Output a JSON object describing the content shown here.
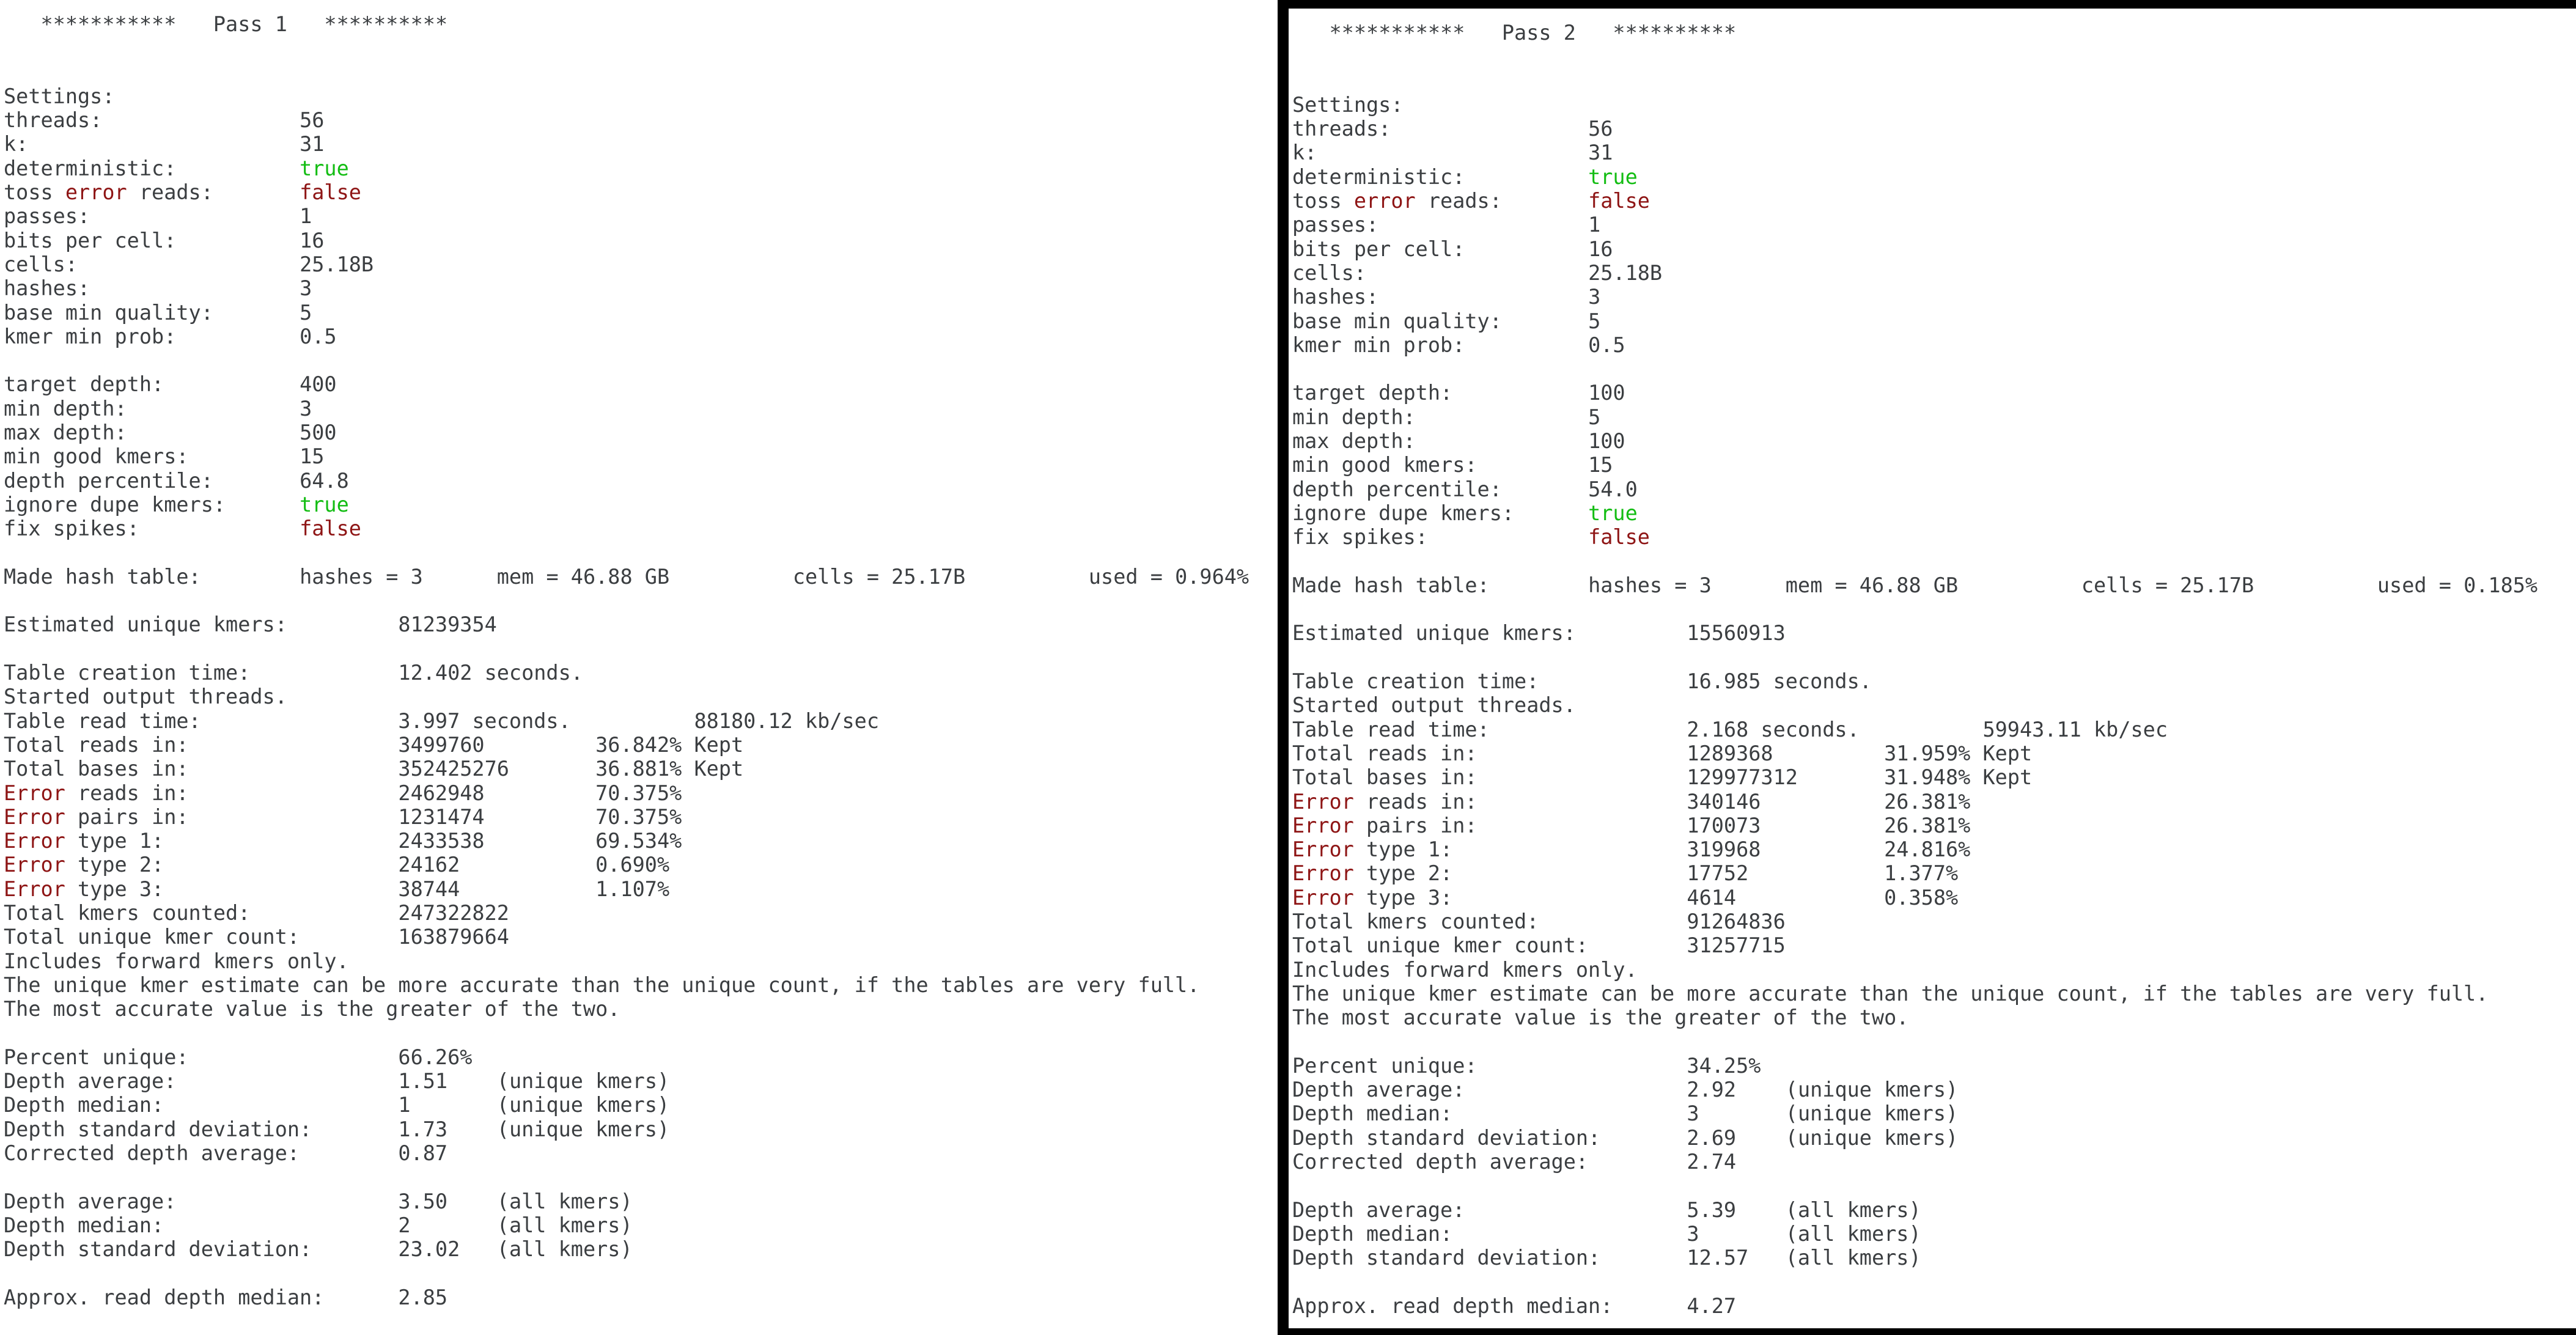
{
  "app": {
    "description": "BBNorm two-pass kmer normalization terminal output, two terminal windows side by side"
  },
  "colors": {
    "text": "#3b3e41",
    "error_red": "#8e1515",
    "true_green": "#13bd13",
    "window_border": "#000000",
    "background": "#ffffff"
  },
  "panels": [
    {
      "name": "pass-1",
      "title": "Pass 1",
      "rows": [
        [
          {
            "col": 3,
            "t": "***********"
          },
          {
            "col": 17,
            "t": "Pass 1"
          },
          {
            "col": 26,
            "t": "**********"
          }
        ],
        [],
        [],
        [
          {
            "col": 0,
            "t": "Settings:"
          }
        ],
        [
          {
            "col": 0,
            "t": "threads:"
          },
          {
            "col": 24,
            "t": "56"
          }
        ],
        [
          {
            "col": 0,
            "t": "k:"
          },
          {
            "col": 24,
            "t": "31"
          }
        ],
        [
          {
            "col": 0,
            "t": "deterministic:"
          },
          {
            "col": 24,
            "t": "true",
            "c": "green"
          }
        ],
        [
          {
            "col": 0,
            "t": "toss "
          },
          {
            "t": "error",
            "c": "red"
          },
          {
            "t": " reads:"
          },
          {
            "col": 24,
            "t": "false",
            "c": "red"
          }
        ],
        [
          {
            "col": 0,
            "t": "passes:"
          },
          {
            "col": 24,
            "t": "1"
          }
        ],
        [
          {
            "col": 0,
            "t": "bits per cell:"
          },
          {
            "col": 24,
            "t": "16"
          }
        ],
        [
          {
            "col": 0,
            "t": "cells:"
          },
          {
            "col": 24,
            "t": "25.18B"
          }
        ],
        [
          {
            "col": 0,
            "t": "hashes:"
          },
          {
            "col": 24,
            "t": "3"
          }
        ],
        [
          {
            "col": 0,
            "t": "base min quality:"
          },
          {
            "col": 24,
            "t": "5"
          }
        ],
        [
          {
            "col": 0,
            "t": "kmer min prob:"
          },
          {
            "col": 24,
            "t": "0.5"
          }
        ],
        [],
        [
          {
            "col": 0,
            "t": "target depth:"
          },
          {
            "col": 24,
            "t": "400"
          }
        ],
        [
          {
            "col": 0,
            "t": "min depth:"
          },
          {
            "col": 24,
            "t": "3"
          }
        ],
        [
          {
            "col": 0,
            "t": "max depth:"
          },
          {
            "col": 24,
            "t": "500"
          }
        ],
        [
          {
            "col": 0,
            "t": "min good kmers:"
          },
          {
            "col": 24,
            "t": "15"
          }
        ],
        [
          {
            "col": 0,
            "t": "depth percentile:"
          },
          {
            "col": 24,
            "t": "64.8"
          }
        ],
        [
          {
            "col": 0,
            "t": "ignore dupe kmers:"
          },
          {
            "col": 24,
            "t": "true",
            "c": "green"
          }
        ],
        [
          {
            "col": 0,
            "t": "fix spikes:"
          },
          {
            "col": 24,
            "t": "false",
            "c": "red"
          }
        ],
        [],
        [
          {
            "col": 0,
            "t": "Made hash table:"
          },
          {
            "col": 24,
            "t": "hashes = 3"
          },
          {
            "col": 40,
            "t": "mem = 46.88 GB"
          },
          {
            "col": 64,
            "t": "cells = 25.17B"
          },
          {
            "col": 88,
            "t": "used = 0.964%"
          }
        ],
        [],
        [
          {
            "col": 0,
            "t": "Estimated unique kmers:"
          },
          {
            "col": 32,
            "t": "81239354"
          }
        ],
        [],
        [
          {
            "col": 0,
            "t": "Table creation time:"
          },
          {
            "col": 32,
            "t": "12.402 seconds."
          }
        ],
        [
          {
            "col": 0,
            "t": "Started output threads."
          }
        ],
        [
          {
            "col": 0,
            "t": "Table read time:"
          },
          {
            "col": 32,
            "t": "3.997 seconds."
          },
          {
            "col": 56,
            "t": "88180.12 kb/sec"
          }
        ],
        [
          {
            "col": 0,
            "t": "Total reads in:"
          },
          {
            "col": 32,
            "t": "3499760"
          },
          {
            "col": 48,
            "t": "36.842% Kept"
          }
        ],
        [
          {
            "col": 0,
            "t": "Total bases in:"
          },
          {
            "col": 32,
            "t": "352425276"
          },
          {
            "col": 48,
            "t": "36.881% Kept"
          }
        ],
        [
          {
            "col": 0,
            "t": "Error",
            "c": "red"
          },
          {
            "t": " reads in:"
          },
          {
            "col": 32,
            "t": "2462948"
          },
          {
            "col": 48,
            "t": "70.375%"
          }
        ],
        [
          {
            "col": 0,
            "t": "Error",
            "c": "red"
          },
          {
            "t": " pairs in:"
          },
          {
            "col": 32,
            "t": "1231474"
          },
          {
            "col": 48,
            "t": "70.375%"
          }
        ],
        [
          {
            "col": 0,
            "t": "Error",
            "c": "red"
          },
          {
            "t": " type 1:"
          },
          {
            "col": 32,
            "t": "2433538"
          },
          {
            "col": 48,
            "t": "69.534%"
          }
        ],
        [
          {
            "col": 0,
            "t": "Error",
            "c": "red"
          },
          {
            "t": " type 2:"
          },
          {
            "col": 32,
            "t": "24162"
          },
          {
            "col": 48,
            "t": "0.690%"
          }
        ],
        [
          {
            "col": 0,
            "t": "Error",
            "c": "red"
          },
          {
            "t": " type 3:"
          },
          {
            "col": 32,
            "t": "38744"
          },
          {
            "col": 48,
            "t": "1.107%"
          }
        ],
        [
          {
            "col": 0,
            "t": "Total kmers counted:"
          },
          {
            "col": 32,
            "t": "247322822"
          }
        ],
        [
          {
            "col": 0,
            "t": "Total unique kmer count:"
          },
          {
            "col": 32,
            "t": "163879664"
          }
        ],
        [
          {
            "col": 0,
            "t": "Includes forward kmers only."
          }
        ],
        [
          {
            "col": 0,
            "t": "The unique kmer estimate can be more accurate than the unique count, if the tables are very full."
          }
        ],
        [
          {
            "col": 0,
            "t": "The most accurate value is the greater of the two."
          }
        ],
        [],
        [
          {
            "col": 0,
            "t": "Percent unique:"
          },
          {
            "col": 32,
            "t": "66.26%"
          }
        ],
        [
          {
            "col": 0,
            "t": "Depth average:"
          },
          {
            "col": 32,
            "t": "1.51"
          },
          {
            "col": 40,
            "t": "(unique kmers)"
          }
        ],
        [
          {
            "col": 0,
            "t": "Depth median:"
          },
          {
            "col": 32,
            "t": "1"
          },
          {
            "col": 40,
            "t": "(unique kmers)"
          }
        ],
        [
          {
            "col": 0,
            "t": "Depth standard deviation:"
          },
          {
            "col": 32,
            "t": "1.73"
          },
          {
            "col": 40,
            "t": "(unique kmers)"
          }
        ],
        [
          {
            "col": 0,
            "t": "Corrected depth average:"
          },
          {
            "col": 32,
            "t": "0.87"
          }
        ],
        [],
        [
          {
            "col": 0,
            "t": "Depth average:"
          },
          {
            "col": 32,
            "t": "3.50"
          },
          {
            "col": 40,
            "t": "(all kmers)"
          }
        ],
        [
          {
            "col": 0,
            "t": "Depth median:"
          },
          {
            "col": 32,
            "t": "2"
          },
          {
            "col": 40,
            "t": "(all kmers)"
          }
        ],
        [
          {
            "col": 0,
            "t": "Depth standard deviation:"
          },
          {
            "col": 32,
            "t": "23.02"
          },
          {
            "col": 40,
            "t": "(all kmers)"
          }
        ],
        [],
        [
          {
            "col": 0,
            "t": "Approx. read depth median:"
          },
          {
            "col": 32,
            "t": "2.85"
          }
        ]
      ]
    },
    {
      "name": "pass-2",
      "title": "Pass 2",
      "rows": [
        [
          {
            "col": 3,
            "t": "***********"
          },
          {
            "col": 17,
            "t": "Pass 2"
          },
          {
            "col": 26,
            "t": "**********"
          }
        ],
        [],
        [],
        [
          {
            "col": 0,
            "t": "Settings:"
          }
        ],
        [
          {
            "col": 0,
            "t": "threads:"
          },
          {
            "col": 24,
            "t": "56"
          }
        ],
        [
          {
            "col": 0,
            "t": "k:"
          },
          {
            "col": 24,
            "t": "31"
          }
        ],
        [
          {
            "col": 0,
            "t": "deterministic:"
          },
          {
            "col": 24,
            "t": "true",
            "c": "green"
          }
        ],
        [
          {
            "col": 0,
            "t": "toss "
          },
          {
            "t": "error",
            "c": "red"
          },
          {
            "t": " reads:"
          },
          {
            "col": 24,
            "t": "false",
            "c": "red"
          }
        ],
        [
          {
            "col": 0,
            "t": "passes:"
          },
          {
            "col": 24,
            "t": "1"
          }
        ],
        [
          {
            "col": 0,
            "t": "bits per cell:"
          },
          {
            "col": 24,
            "t": "16"
          }
        ],
        [
          {
            "col": 0,
            "t": "cells:"
          },
          {
            "col": 24,
            "t": "25.18B"
          }
        ],
        [
          {
            "col": 0,
            "t": "hashes:"
          },
          {
            "col": 24,
            "t": "3"
          }
        ],
        [
          {
            "col": 0,
            "t": "base min quality:"
          },
          {
            "col": 24,
            "t": "5"
          }
        ],
        [
          {
            "col": 0,
            "t": "kmer min prob:"
          },
          {
            "col": 24,
            "t": "0.5"
          }
        ],
        [],
        [
          {
            "col": 0,
            "t": "target depth:"
          },
          {
            "col": 24,
            "t": "100"
          }
        ],
        [
          {
            "col": 0,
            "t": "min depth:"
          },
          {
            "col": 24,
            "t": "5"
          }
        ],
        [
          {
            "col": 0,
            "t": "max depth:"
          },
          {
            "col": 24,
            "t": "100"
          }
        ],
        [
          {
            "col": 0,
            "t": "min good kmers:"
          },
          {
            "col": 24,
            "t": "15"
          }
        ],
        [
          {
            "col": 0,
            "t": "depth percentile:"
          },
          {
            "col": 24,
            "t": "54.0"
          }
        ],
        [
          {
            "col": 0,
            "t": "ignore dupe kmers:"
          },
          {
            "col": 24,
            "t": "true",
            "c": "green"
          }
        ],
        [
          {
            "col": 0,
            "t": "fix spikes:"
          },
          {
            "col": 24,
            "t": "false",
            "c": "red"
          }
        ],
        [],
        [
          {
            "col": 0,
            "t": "Made hash table:"
          },
          {
            "col": 24,
            "t": "hashes = 3"
          },
          {
            "col": 40,
            "t": "mem = 46.88 GB"
          },
          {
            "col": 64,
            "t": "cells = 25.17B"
          },
          {
            "col": 88,
            "t": "used = 0.185%"
          }
        ],
        [],
        [
          {
            "col": 0,
            "t": "Estimated unique kmers:"
          },
          {
            "col": 32,
            "t": "15560913"
          }
        ],
        [],
        [
          {
            "col": 0,
            "t": "Table creation time:"
          },
          {
            "col": 32,
            "t": "16.985 seconds."
          }
        ],
        [
          {
            "col": 0,
            "t": "Started output threads."
          }
        ],
        [
          {
            "col": 0,
            "t": "Table read time:"
          },
          {
            "col": 32,
            "t": "2.168 seconds."
          },
          {
            "col": 56,
            "t": "59943.11 kb/sec"
          }
        ],
        [
          {
            "col": 0,
            "t": "Total reads in:"
          },
          {
            "col": 32,
            "t": "1289368"
          },
          {
            "col": 48,
            "t": "31.959% Kept"
          }
        ],
        [
          {
            "col": 0,
            "t": "Total bases in:"
          },
          {
            "col": 32,
            "t": "129977312"
          },
          {
            "col": 48,
            "t": "31.948% Kept"
          }
        ],
        [
          {
            "col": 0,
            "t": "Error",
            "c": "red"
          },
          {
            "t": " reads in:"
          },
          {
            "col": 32,
            "t": "340146"
          },
          {
            "col": 48,
            "t": "26.381%"
          }
        ],
        [
          {
            "col": 0,
            "t": "Error",
            "c": "red"
          },
          {
            "t": " pairs in:"
          },
          {
            "col": 32,
            "t": "170073"
          },
          {
            "col": 48,
            "t": "26.381%"
          }
        ],
        [
          {
            "col": 0,
            "t": "Error",
            "c": "red"
          },
          {
            "t": " type 1:"
          },
          {
            "col": 32,
            "t": "319968"
          },
          {
            "col": 48,
            "t": "24.816%"
          }
        ],
        [
          {
            "col": 0,
            "t": "Error",
            "c": "red"
          },
          {
            "t": " type 2:"
          },
          {
            "col": 32,
            "t": "17752"
          },
          {
            "col": 48,
            "t": "1.377%"
          }
        ],
        [
          {
            "col": 0,
            "t": "Error",
            "c": "red"
          },
          {
            "t": " type 3:"
          },
          {
            "col": 32,
            "t": "4614"
          },
          {
            "col": 48,
            "t": "0.358%"
          }
        ],
        [
          {
            "col": 0,
            "t": "Total kmers counted:"
          },
          {
            "col": 32,
            "t": "91264836"
          }
        ],
        [
          {
            "col": 0,
            "t": "Total unique kmer count:"
          },
          {
            "col": 32,
            "t": "31257715"
          }
        ],
        [
          {
            "col": 0,
            "t": "Includes forward kmers only."
          }
        ],
        [
          {
            "col": 0,
            "t": "The unique kmer estimate can be more accurate than the unique count, if the tables are very full."
          }
        ],
        [
          {
            "col": 0,
            "t": "The most accurate value is the greater of the two."
          }
        ],
        [],
        [
          {
            "col": 0,
            "t": "Percent unique:"
          },
          {
            "col": 32,
            "t": "34.25%"
          }
        ],
        [
          {
            "col": 0,
            "t": "Depth average:"
          },
          {
            "col": 32,
            "t": "2.92"
          },
          {
            "col": 40,
            "t": "(unique kmers)"
          }
        ],
        [
          {
            "col": 0,
            "t": "Depth median:"
          },
          {
            "col": 32,
            "t": "3"
          },
          {
            "col": 40,
            "t": "(unique kmers)"
          }
        ],
        [
          {
            "col": 0,
            "t": "Depth standard deviation:"
          },
          {
            "col": 32,
            "t": "2.69"
          },
          {
            "col": 40,
            "t": "(unique kmers)"
          }
        ],
        [
          {
            "col": 0,
            "t": "Corrected depth average:"
          },
          {
            "col": 32,
            "t": "2.74"
          }
        ],
        [],
        [
          {
            "col": 0,
            "t": "Depth average:"
          },
          {
            "col": 32,
            "t": "5.39"
          },
          {
            "col": 40,
            "t": "(all kmers)"
          }
        ],
        [
          {
            "col": 0,
            "t": "Depth median:"
          },
          {
            "col": 32,
            "t": "3"
          },
          {
            "col": 40,
            "t": "(all kmers)"
          }
        ],
        [
          {
            "col": 0,
            "t": "Depth standard deviation:"
          },
          {
            "col": 32,
            "t": "12.57"
          },
          {
            "col": 40,
            "t": "(all kmers)"
          }
        ],
        [],
        [
          {
            "col": 0,
            "t": "Approx. read depth median:"
          },
          {
            "col": 32,
            "t": "4.27"
          }
        ]
      ]
    }
  ]
}
